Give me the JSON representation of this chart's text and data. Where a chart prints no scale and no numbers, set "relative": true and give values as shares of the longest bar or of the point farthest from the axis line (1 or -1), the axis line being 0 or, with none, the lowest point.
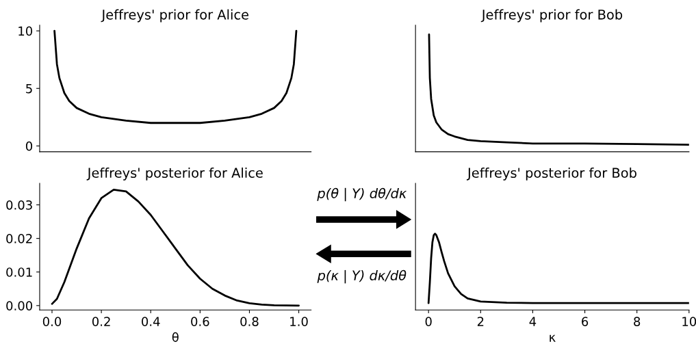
{
  "chart_data": [
    {
      "type": "line",
      "title": "Jeffreys' prior for Alice",
      "tick_labels": "y",
      "xlim": [
        -0.05,
        1.05
      ],
      "xticks": [
        0.0,
        0.2,
        0.4,
        0.6,
        0.8,
        1.0
      ],
      "ylim": [
        -0.5,
        10.5
      ],
      "yticks": [
        0,
        5,
        10
      ],
      "series": [
        {
          "color": "#000000",
          "x": [
            0.01,
            0.02,
            0.03,
            0.05,
            0.07,
            0.1,
            0.15,
            0.2,
            0.3,
            0.4,
            0.5,
            0.6,
            0.7,
            0.8,
            0.85,
            0.9,
            0.93,
            0.95,
            0.97,
            0.98,
            0.99
          ],
          "values": [
            10.0,
            7.1,
            5.9,
            4.6,
            3.9,
            3.3,
            2.8,
            2.5,
            2.2,
            2.0,
            2.0,
            2.0,
            2.2,
            2.5,
            2.8,
            3.3,
            3.9,
            4.6,
            5.9,
            7.1,
            10.0
          ]
        }
      ]
    },
    {
      "type": "line",
      "title": "Jeffreys' prior for Bob",
      "tick_labels": false,
      "relative": true,
      "xlim": [
        -0.5,
        10
      ],
      "xticks": [
        0,
        2,
        4,
        6,
        8,
        10
      ],
      "series": [
        {
          "color": "#000000",
          "x": [
            0.02,
            0.05,
            0.1,
            0.2,
            0.3,
            0.5,
            0.75,
            1,
            1.5,
            2,
            3,
            4,
            6,
            8,
            10
          ],
          "values": [
            1,
            0.63,
            0.45,
            0.31,
            0.25,
            0.19,
            0.15,
            0.13,
            0.1,
            0.09,
            0.08,
            0.07,
            0.07,
            0.065,
            0.06
          ]
        }
      ]
    },
    {
      "type": "line",
      "title": "Jeffreys' posterior for Alice",
      "xlabel": "θ",
      "xlim": [
        -0.05,
        1.05
      ],
      "xticks": [
        {
          "value": 0,
          "label": "0.0"
        },
        {
          "value": 0.2,
          "label": "0.2"
        },
        {
          "value": 0.4,
          "label": "0.4"
        },
        {
          "value": 0.6,
          "label": "0.6"
        },
        {
          "value": 0.8,
          "label": "0.8"
        },
        {
          "value": 1,
          "label": "1.0"
        }
      ],
      "ylim": [
        -0.0013,
        0.0364
      ],
      "yticks": [
        {
          "value": 0,
          "label": "0.00"
        },
        {
          "value": 0.01,
          "label": "0.01"
        },
        {
          "value": 0.02,
          "label": "0.02"
        },
        {
          "value": 0.03,
          "label": "0.03"
        }
      ],
      "series": [
        {
          "color": "#000000",
          "x": [
            0,
            0.02,
            0.05,
            0.1,
            0.15,
            0.2,
            0.25,
            0.3,
            0.35,
            0.4,
            0.45,
            0.5,
            0.55,
            0.6,
            0.65,
            0.7,
            0.75,
            0.8,
            0.85,
            0.9,
            1.0
          ],
          "values": [
            0.0005,
            0.002,
            0.007,
            0.017,
            0.026,
            0.032,
            0.0345,
            0.034,
            0.031,
            0.027,
            0.022,
            0.017,
            0.012,
            0.008,
            0.005,
            0.003,
            0.0015,
            0.0007,
            0.0003,
            0.0001,
            0
          ]
        }
      ]
    },
    {
      "type": "line",
      "title": "Jeffreys' posterior for Bob",
      "xlabel": "κ",
      "tick_labels": "x",
      "relative": true,
      "xlim": [
        -0.5,
        10
      ],
      "xticks": [
        0,
        2,
        4,
        6,
        8,
        10
      ],
      "annotations": [
        "p(θ | Y) dθ/dκ",
        "p(κ | Y) dκ/dθ"
      ],
      "series": [
        {
          "color": "#000000",
          "x": [
            0,
            0.05,
            0.1,
            0.15,
            0.2,
            0.25,
            0.3,
            0.4,
            0.5,
            0.6,
            0.75,
            1,
            1.25,
            1.5,
            2,
            3,
            4,
            6,
            10
          ],
          "values": [
            0.09,
            0.36,
            0.68,
            0.89,
            0.98,
            1,
            0.98,
            0.89,
            0.76,
            0.64,
            0.48,
            0.31,
            0.21,
            0.15,
            0.11,
            0.095,
            0.09,
            0.09,
            0.09
          ]
        }
      ]
    }
  ]
}
